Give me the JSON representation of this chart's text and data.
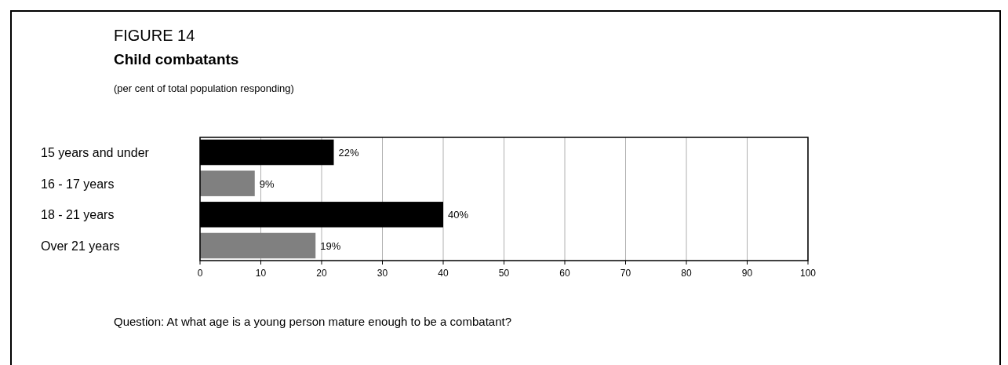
{
  "chart_data": {
    "type": "bar",
    "orientation": "horizontal",
    "title": "Child combatants",
    "subtitle": "(per cent of total population responding)",
    "annotations": [
      "FIGURE 14",
      "Question: At what age is a young person mature enough to be a combatant?"
    ],
    "categories": [
      "15 years and under",
      "16 - 17 years",
      "18 - 21 years",
      "Over 21 years"
    ],
    "values": [
      22,
      9,
      40,
      19
    ],
    "colors": [
      "#000000",
      "#808080",
      "#000000",
      "#808080"
    ],
    "value_labels": [
      "22%",
      "9%",
      "40%",
      "19%"
    ],
    "xlim": [
      0,
      100
    ],
    "xticks": [
      0,
      10,
      20,
      30,
      40,
      50,
      60,
      70,
      80,
      90,
      100
    ],
    "grid": "x"
  }
}
